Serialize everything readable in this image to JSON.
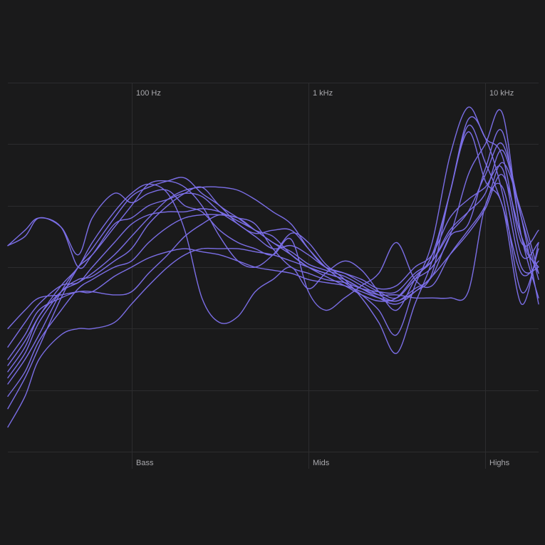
{
  "chart_data": {
    "type": "line",
    "title": "",
    "xlabel": "",
    "ylabel": "",
    "x_scale": "log",
    "x_range_hz": [
      20,
      20000
    ],
    "grid": true,
    "legend": "none",
    "series_color": "#7b6ee6",
    "background_color": "#1a1a1b",
    "grid_color": "#2c2c2e",
    "x_ticks": [
      {
        "value": 100,
        "label": "100 Hz"
      },
      {
        "value": 1000,
        "label": "1 kHz"
      },
      {
        "value": 10000,
        "label": "10 kHz"
      }
    ],
    "bands": [
      {
        "value": 100,
        "label": "Bass"
      },
      {
        "value": 1000,
        "label": "Mids"
      },
      {
        "value": 10000,
        "label": "Highs"
      }
    ],
    "y_range": [
      0,
      6
    ],
    "y_gridlines": [
      0,
      1,
      2,
      3,
      4,
      5,
      6
    ],
    "x_hz": [
      20,
      25,
      30,
      40,
      50,
      60,
      80,
      100,
      125,
      160,
      200,
      250,
      315,
      400,
      500,
      630,
      800,
      1000,
      1250,
      1600,
      2000,
      2500,
      3150,
      4000,
      5000,
      6300,
      8000,
      10000,
      12500,
      16000,
      20000
    ],
    "series": [
      {
        "values": [
          3.35,
          3.6,
          3.8,
          3.65,
          3.0,
          3.2,
          3.7,
          3.8,
          4.0,
          4.1,
          4.2,
          4.15,
          3.9,
          3.7,
          3.5,
          3.3,
          3.35,
          3.2,
          3.0,
          2.9,
          2.75,
          2.6,
          2.5,
          2.8,
          3.0,
          3.5,
          4.5,
          5.0,
          5.5,
          3.5,
          3.0
        ]
      },
      {
        "values": [
          1.2,
          1.6,
          2.1,
          2.6,
          2.8,
          2.85,
          3.1,
          3.3,
          3.7,
          4.0,
          4.2,
          4.3,
          4.0,
          3.8,
          3.6,
          3.5,
          3.2,
          3.0,
          2.9,
          2.8,
          2.65,
          2.5,
          2.4,
          2.6,
          2.9,
          4.2,
          5.2,
          4.4,
          4.0,
          2.4,
          3.4
        ]
      },
      {
        "values": [
          1.7,
          2.1,
          2.4,
          2.7,
          2.75,
          3.0,
          3.4,
          3.7,
          3.85,
          3.9,
          3.9,
          3.95,
          3.9,
          3.75,
          3.6,
          3.4,
          3.25,
          3.05,
          2.95,
          2.85,
          2.7,
          2.55,
          2.45,
          2.65,
          2.85,
          3.5,
          3.7,
          4.6,
          5.2,
          3.5,
          2.5
        ]
      },
      {
        "values": [
          0.9,
          1.3,
          1.8,
          2.3,
          2.65,
          2.8,
          3.0,
          3.1,
          3.4,
          3.65,
          3.8,
          3.85,
          3.85,
          3.8,
          3.6,
          3.4,
          3.2,
          3.0,
          2.85,
          2.7,
          2.55,
          2.45,
          2.5,
          2.85,
          3.1,
          3.6,
          3.9,
          4.2,
          4.9,
          3.8,
          2.8
        ]
      },
      {
        "values": [
          2.0,
          2.3,
          2.5,
          2.55,
          2.6,
          2.6,
          2.85,
          3.0,
          3.15,
          3.25,
          3.3,
          3.25,
          3.2,
          3.1,
          3.0,
          2.95,
          2.9,
          2.8,
          2.75,
          2.7,
          2.6,
          2.5,
          2.45,
          2.6,
          2.85,
          3.2,
          3.55,
          3.95,
          4.5,
          3.5,
          2.9
        ]
      },
      {
        "values": [
          0.4,
          0.9,
          1.5,
          1.9,
          2.0,
          2.0,
          2.1,
          2.4,
          2.7,
          3.0,
          3.2,
          3.3,
          3.3,
          3.3,
          3.25,
          3.2,
          3.1,
          3.0,
          2.9,
          2.8,
          2.65,
          2.55,
          2.55,
          2.5,
          2.5,
          2.5,
          2.6,
          4.0,
          4.3,
          3.0,
          3.0
        ]
      },
      {
        "values": [
          1.3,
          1.7,
          2.2,
          2.6,
          2.75,
          2.9,
          3.2,
          3.5,
          3.8,
          4.1,
          4.25,
          4.3,
          4.3,
          4.25,
          4.1,
          3.9,
          3.7,
          3.3,
          3.0,
          2.9,
          2.8,
          2.65,
          2.7,
          3.0,
          3.2,
          3.8,
          4.1,
          4.3,
          4.6,
          3.2,
          3.4
        ]
      },
      {
        "values": [
          1.5,
          1.9,
          2.3,
          2.5,
          2.6,
          2.6,
          2.55,
          2.6,
          2.9,
          3.2,
          3.5,
          3.7,
          3.85,
          3.8,
          3.7,
          3.3,
          3.0,
          2.9,
          2.8,
          2.75,
          2.65,
          2.6,
          2.6,
          2.9,
          3.1,
          3.55,
          3.9,
          4.5,
          5.0,
          3.8,
          2.4
        ]
      },
      {
        "values": [
          1.1,
          1.5,
          1.9,
          2.6,
          3.0,
          3.2,
          3.65,
          4.0,
          4.35,
          4.4,
          4.3,
          4.0,
          3.5,
          3.1,
          3.0,
          3.2,
          3.55,
          3.4,
          3.05,
          2.8,
          2.5,
          2.1,
          1.6,
          2.4,
          3.1,
          4.2,
          5.4,
          5.1,
          4.2,
          2.6,
          3.3
        ]
      },
      {
        "values": [
          0.7,
          1.2,
          1.7,
          2.5,
          3.0,
          3.3,
          3.8,
          4.15,
          4.3,
          4.4,
          4.45,
          4.2,
          4.0,
          3.7,
          3.55,
          3.6,
          3.6,
          3.3,
          3.0,
          2.75,
          2.55,
          2.3,
          1.9,
          2.7,
          3.4,
          4.8,
          5.6,
          5.1,
          4.8,
          3.4,
          3.6
        ]
      },
      {
        "values": [
          1.4,
          1.8,
          2.2,
          2.7,
          3.0,
          3.4,
          3.9,
          4.2,
          4.35,
          4.2,
          3.6,
          2.5,
          2.1,
          2.2,
          2.6,
          2.8,
          3.0,
          2.65,
          2.9,
          3.1,
          2.95,
          2.6,
          2.3,
          2.8,
          3.2,
          4.2,
          5.3,
          4.7,
          4.0,
          2.9,
          3.1
        ]
      },
      {
        "values": [
          3.35,
          3.5,
          3.8,
          3.65,
          3.2,
          3.8,
          4.2,
          4.05,
          4.2,
          4.25,
          4.0,
          3.9,
          3.6,
          3.4,
          3.3,
          3.2,
          3.45,
          2.6,
          2.3,
          2.5,
          2.7,
          2.9,
          3.4,
          2.8,
          2.7,
          3.2,
          3.6,
          4.0,
          4.7,
          3.9,
          2.9
        ]
      }
    ]
  }
}
